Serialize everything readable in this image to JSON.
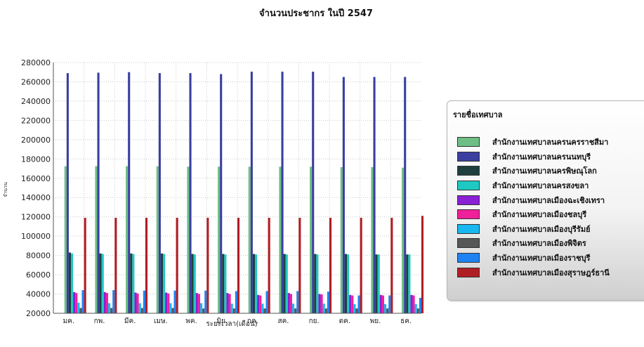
{
  "colors": {
    "s1": "#6dbf85",
    "s2": "#3a3fa0",
    "s3": "#1f3f3f",
    "s4": "#1fc9c3",
    "s5": "#8a1fd6",
    "s6": "#f01f9a",
    "s7": "#17b8f0",
    "s8": "#575757",
    "s9": "#1f82f2",
    "s10": "#b01e24"
  },
  "chart_data": {
    "type": "bar",
    "title": "จำนวนประชากร ในปี 2547",
    "xlabel": "ระยะเวลา(เดือน)",
    "ylabel": "จำนวน",
    "ylim": [
      20000,
      280000
    ],
    "yticks": [
      20000,
      40000,
      60000,
      80000,
      100000,
      120000,
      140000,
      160000,
      180000,
      200000,
      220000,
      240000,
      260000,
      280000
    ],
    "grid": true,
    "legend_position": "right",
    "legend_title": "รายชื่อเทศบาล",
    "categories": [
      "มค.",
      "กพ.",
      "มีค.",
      "เมษ.",
      "พค.",
      "มิย.",
      "กค.",
      "สค.",
      "กย.",
      "ตค.",
      "พย.",
      "ธค."
    ],
    "series": [
      {
        "name": "สำนักงานเทศบาลนครนครราชสีมา",
        "values": [
          172500,
          172500,
          172500,
          172500,
          172000,
          172000,
          172000,
          172000,
          172000,
          171500,
          171500,
          171000
        ]
      },
      {
        "name": "สำนักงานเทศบาลนครนนทบุรี",
        "values": [
          269000,
          269500,
          270000,
          269000,
          269000,
          268000,
          270500,
          270500,
          270500,
          265000,
          265000,
          265000
        ]
      },
      {
        "name": "สำนักงานเทศบาลนครพิษณุโลก",
        "values": [
          83000,
          82000,
          82000,
          82000,
          81500,
          81500,
          81500,
          81500,
          81500,
          81500,
          81000,
          81000
        ]
      },
      {
        "name": "สำนักงานเทศบาลนครสงขลา",
        "values": [
          82000,
          81500,
          81500,
          81500,
          81000,
          81000,
          81000,
          81000,
          81000,
          81000,
          81000,
          81000
        ]
      },
      {
        "name": "สำนักงานเทศบาลเมืองฉะเชิงเทรา",
        "values": [
          42000,
          42000,
          41500,
          41500,
          41000,
          41000,
          39000,
          41000,
          40000,
          39000,
          39000,
          39000
        ]
      },
      {
        "name": "สำนักงานเทศบาลเมืองชลบุรี",
        "values": [
          41000,
          41000,
          40500,
          40500,
          40000,
          40000,
          38500,
          40000,
          39500,
          38500,
          38500,
          38500
        ]
      },
      {
        "name": "สำนักงานเทศบาลเมืองบุรีรัมย์",
        "values": [
          31000,
          30500,
          30500,
          30500,
          30500,
          30000,
          30000,
          30000,
          30000,
          29500,
          29500,
          29500
        ]
      },
      {
        "name": "สำนักงานเทศบาลเมืองพิจิตร",
        "values": [
          25500,
          25500,
          25500,
          25500,
          25000,
          25000,
          25000,
          25000,
          25000,
          25000,
          25000,
          25000
        ]
      },
      {
        "name": "สำนักงานเทศบาลเมืองราชบุรี",
        "values": [
          44000,
          44000,
          43500,
          43500,
          43500,
          43000,
          43000,
          43000,
          42500,
          38500,
          38500,
          36000
        ]
      },
      {
        "name": "สำนักงานเทศบาลเมืองสุราษฎร์ธานี",
        "values": [
          119000,
          119000,
          119000,
          119000,
          119000,
          119000,
          119000,
          119000,
          119000,
          119000,
          119000,
          121000
        ]
      }
    ]
  }
}
